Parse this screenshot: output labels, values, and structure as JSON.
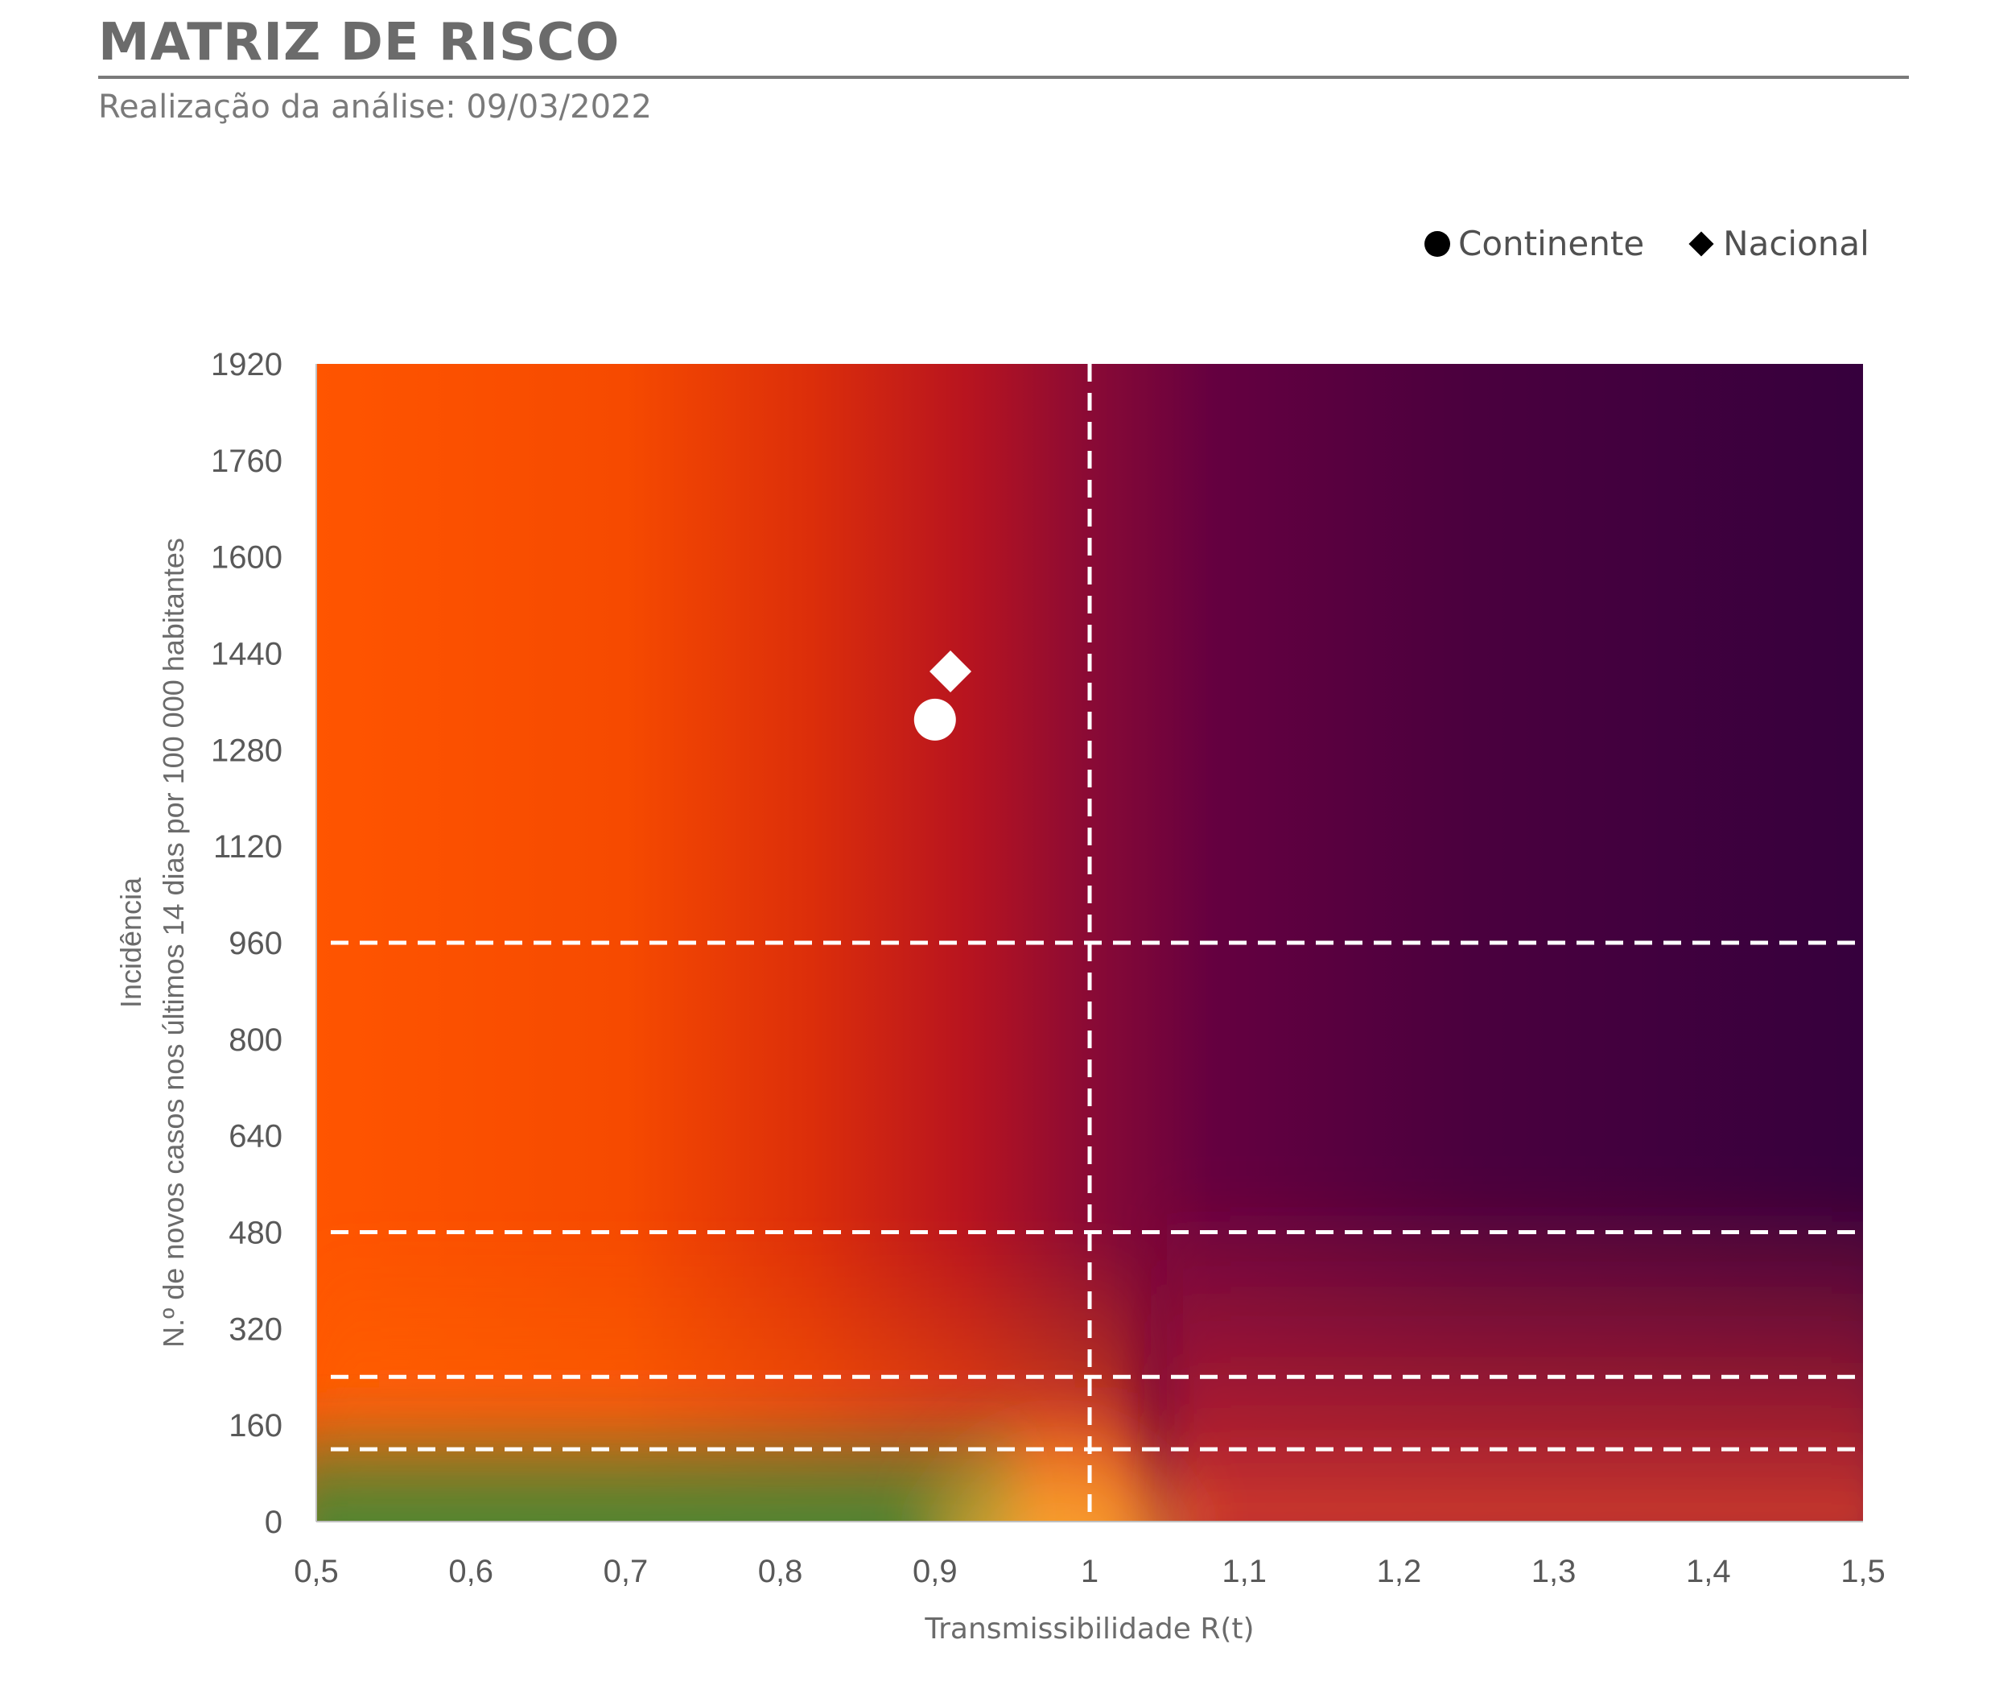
{
  "header": {
    "title": "MATRIZ DE RISCO",
    "subtitle": "Realização da análise: 09/03/2022"
  },
  "legend": {
    "items": [
      {
        "label": "Continente",
        "marker": "circle"
      },
      {
        "label": "Nacional",
        "marker": "diamond"
      }
    ]
  },
  "colors": {
    "orange": "#ff5500",
    "red": "#b8141f",
    "crimson": "#8a0a35",
    "purple": "#5a003c",
    "dark_purple": "#36003d",
    "green": "#2e8b3a",
    "yellow": "#ffb833",
    "text": "#595959",
    "guide_lines": "#ffffff"
  },
  "chart_data": {
    "type": "scatter",
    "title": "MATRIZ DE RISCO",
    "subtitle": "Realização da análise: 09/03/2022",
    "xlabel": "Transmissibilidade R(t)",
    "ylabel_line1": "Incidência",
    "ylabel_line2": "N.º de novos casos nos últimos 14 dias por 100 000 habitantes",
    "xlim": [
      0.5,
      1.5
    ],
    "ylim": [
      0,
      1920
    ],
    "x_ticks": [
      0.5,
      0.6,
      0.7,
      0.8,
      0.9,
      1,
      1.1,
      1.2,
      1.3,
      1.4,
      1.5
    ],
    "x_tick_labels": [
      "0,5",
      "0,6",
      "0,7",
      "0,8",
      "0,9",
      "1",
      "1,1",
      "1,2",
      "1,3",
      "1,4",
      "1,5"
    ],
    "y_ticks": [
      0,
      160,
      320,
      480,
      640,
      800,
      960,
      1120,
      1280,
      1440,
      1600,
      1760,
      1920
    ],
    "y_tick_labels": [
      "0",
      "160",
      "320",
      "480",
      "640",
      "800",
      "960",
      "1120",
      "1280",
      "1440",
      "1600",
      "1760",
      "1920"
    ],
    "reference_lines": {
      "vertical_x": [
        1
      ],
      "horizontal_y": [
        120,
        240,
        480,
        960
      ]
    },
    "series": [
      {
        "name": "Continente",
        "marker": "circle",
        "x": 0.9,
        "y": 1330
      },
      {
        "name": "Nacional",
        "marker": "diamond",
        "x": 0.91,
        "y": 1410
      }
    ],
    "grid": false,
    "legend_position": "top-right"
  }
}
